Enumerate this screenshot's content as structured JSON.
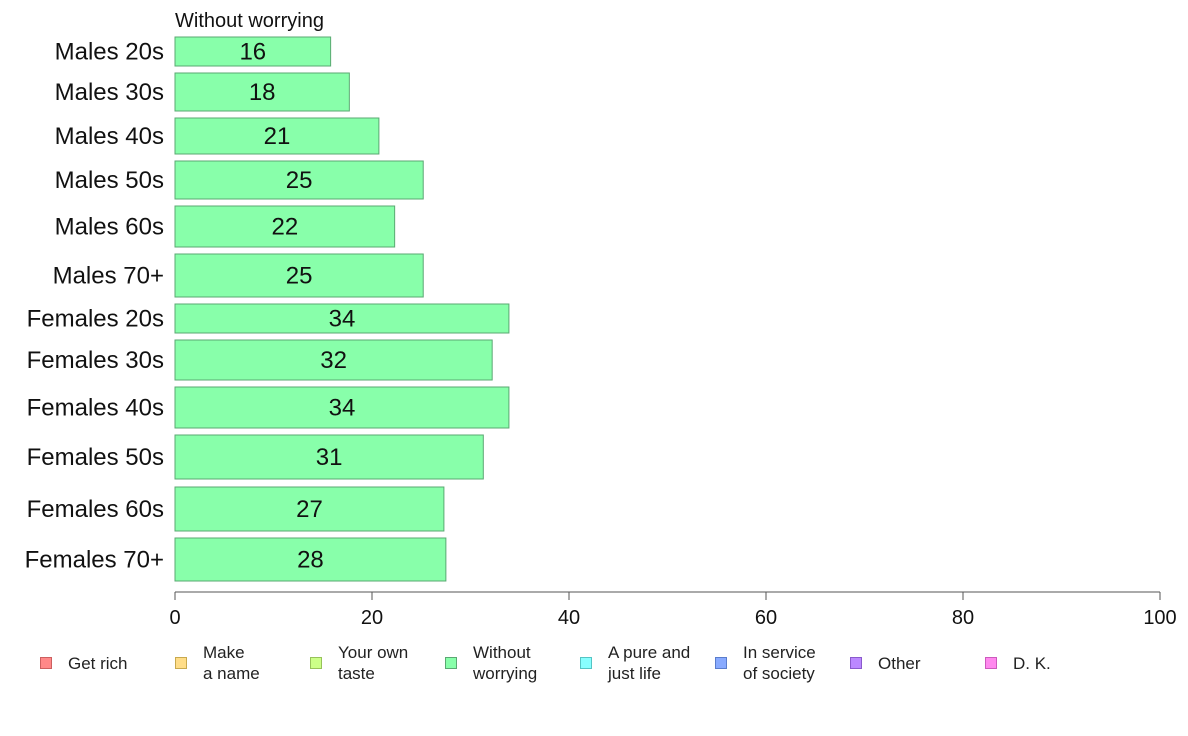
{
  "chart_data": {
    "type": "bar",
    "orientation": "horizontal",
    "title": "Without worrying",
    "categories": [
      "Males 20s",
      "Males 30s",
      "Males 40s",
      "Males 50s",
      "Males 60s",
      "Males 70+",
      "Females 20s",
      "Females 30s",
      "Females 40s",
      "Females 50s",
      "Females 60s",
      "Females 70+"
    ],
    "values": [
      16,
      18,
      21,
      25,
      22,
      25,
      34,
      32,
      34,
      31,
      27,
      28
    ],
    "bar_values": [
      15.8,
      17.7,
      20.7,
      25.2,
      22.3,
      25.2,
      33.9,
      32.2,
      33.9,
      31.3,
      27.3,
      27.5
    ],
    "xlim": [
      0,
      100
    ],
    "xticks": [
      0,
      20,
      40,
      60,
      80,
      100
    ],
    "xlabel": "",
    "ylabel": "",
    "grid": false,
    "bar_color": "#88ffaa",
    "bar_edge_color": "#5aa872",
    "legend_placement": "bottom"
  },
  "legend": {
    "items": [
      {
        "label": "Get rich",
        "color": "#ff8888",
        "edge": "#cc5f5f"
      },
      {
        "label": "Make\na name",
        "color": "#ffdd88",
        "edge": "#c8a94e"
      },
      {
        "label": "Your own\ntaste",
        "color": "#ccff88",
        "edge": "#97c25a"
      },
      {
        "label": "Without\nworrying",
        "color": "#88ffaa",
        "edge": "#5aa872"
      },
      {
        "label": "A pure and\njust life",
        "color": "#88ffff",
        "edge": "#55c4c4"
      },
      {
        "label": "In service\nof society",
        "color": "#88aaff",
        "edge": "#5a7dcc"
      },
      {
        "label": "Other",
        "color": "#bb88ff",
        "edge": "#8a5acc"
      },
      {
        "label": "D. K.",
        "color": "#ff88ee",
        "edge": "#cc5abd"
      }
    ]
  }
}
